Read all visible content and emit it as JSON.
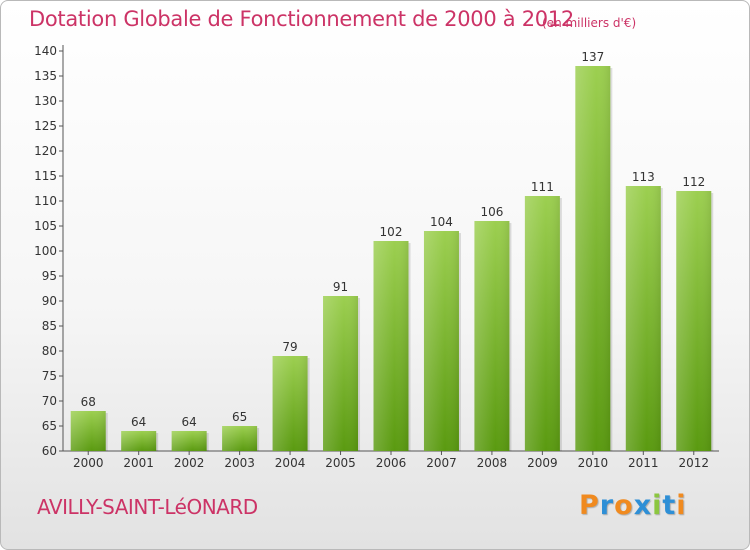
{
  "title": "Dotation Globale de Fonctionnement de 2000 à 2012",
  "subtitle": "(en milliers d'€)",
  "commune": "AVILLY-SAINT-LéONARD",
  "logo": {
    "text": "Proxiti",
    "colors": [
      "#f08a1f",
      "#2e8fd6",
      "#f08a1f",
      "#2e8fd6",
      "#8cc640",
      "#2e8fd6",
      "#f08a1f"
    ]
  },
  "colors": {
    "accent": "#cc3366",
    "bar_top": "#9ccf50",
    "bar_bottom": "#5a9a10",
    "text": "#333333"
  },
  "chart_data": {
    "type": "bar",
    "categories": [
      "2000",
      "2001",
      "2002",
      "2003",
      "2004",
      "2005",
      "2006",
      "2007",
      "2008",
      "2009",
      "2010",
      "2011",
      "2012"
    ],
    "values": [
      68,
      64,
      64,
      65,
      79,
      91,
      102,
      104,
      106,
      111,
      137,
      113,
      112
    ],
    "ylim": [
      60,
      140
    ],
    "yticks": [
      60,
      65,
      70,
      75,
      80,
      85,
      90,
      95,
      100,
      105,
      110,
      115,
      120,
      125,
      130,
      135,
      140
    ],
    "grid": false,
    "legend": "none"
  }
}
